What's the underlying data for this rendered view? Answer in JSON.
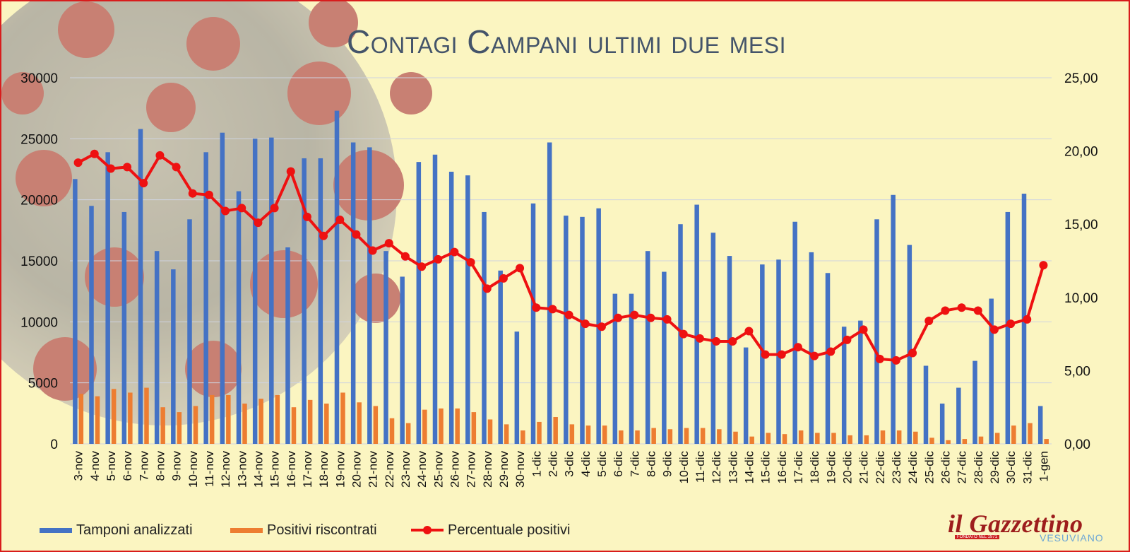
{
  "title": "Contagi Campani ultimi due mesi",
  "legend": {
    "tamponi": "Tamponi analizzati",
    "positivi": "Positivi riscontrati",
    "percentuale": "Percentuale positivi"
  },
  "logo": {
    "name": "il Gazzettino",
    "sub": "VESUVIANO",
    "small": "FONDATO NEL 1971"
  },
  "colors": {
    "tamponi": "#4472c4",
    "positivi": "#ed7d31",
    "percentuale": "#ee1111",
    "title": "#44546a",
    "border": "#d81c1c",
    "background": "#fbf5c1"
  },
  "chart_data": {
    "type": "bar",
    "title": "Contagi Campani ultimi due mesi",
    "categories": [
      "3-nov",
      "4-nov",
      "5-nov",
      "6-nov",
      "7-nov",
      "8-nov",
      "9-nov",
      "10-nov",
      "11-nov",
      "12-nov",
      "13-nov",
      "14-nov",
      "15-nov",
      "16-nov",
      "17-nov",
      "18-nov",
      "19-nov",
      "20-nov",
      "21-nov",
      "22-nov",
      "23-nov",
      "24-nov",
      "25-nov",
      "26-nov",
      "27-nov",
      "28-nov",
      "29-nov",
      "30-nov",
      "1-dic",
      "2-dic",
      "3-dic",
      "4-dic",
      "5-dic",
      "6-dic",
      "7-dic",
      "8-dic",
      "9-dic",
      "10-dic",
      "11-dic",
      "12-dic",
      "13-dic",
      "14-dic",
      "15-dic",
      "16-dic",
      "17-dic",
      "18-dic",
      "19-dic",
      "20-dic",
      "21-dic",
      "22-dic",
      "23-dic",
      "24-dic",
      "25-dic",
      "26-dic",
      "27-dic",
      "28-dic",
      "29-dic",
      "30-dic",
      "31-dic",
      "1-gen"
    ],
    "series": [
      {
        "name": "Tamponi analizzati",
        "type": "bar",
        "axis": "left",
        "values": [
          21700,
          19500,
          23900,
          19000,
          25800,
          15800,
          14300,
          18400,
          23900,
          25500,
          20700,
          25000,
          25100,
          16100,
          23400,
          23400,
          27300,
          24700,
          24300,
          15800,
          13700,
          23100,
          23700,
          22300,
          22000,
          19000,
          14200,
          9200,
          19700,
          24700,
          18700,
          18600,
          19300,
          12300,
          12300,
          15800,
          14100,
          18000,
          19600,
          17300,
          15400,
          7900,
          14700,
          15100,
          18200,
          15700,
          14000,
          9600,
          10100,
          18400,
          20400,
          16300,
          6400,
          3300,
          4600,
          6800,
          11900,
          19000,
          20500,
          3100
        ]
      },
      {
        "name": "Positivi riscontrati",
        "type": "bar",
        "axis": "left",
        "values": [
          4100,
          3900,
          4500,
          4200,
          4600,
          3000,
          2600,
          3100,
          4000,
          4000,
          3300,
          3700,
          4000,
          3000,
          3600,
          3300,
          4200,
          3400,
          3100,
          2100,
          1700,
          2800,
          2900,
          2900,
          2600,
          2000,
          1600,
          1100,
          1800,
          2200,
          1600,
          1500,
          1500,
          1100,
          1100,
          1300,
          1200,
          1300,
          1300,
          1200,
          1000,
          600,
          900,
          800,
          1100,
          900,
          900,
          700,
          700,
          1100,
          1100,
          1000,
          500,
          300,
          400,
          600,
          900,
          1500,
          1700,
          400
        ]
      },
      {
        "name": "Percentuale positivi",
        "type": "line",
        "axis": "right",
        "values": [
          19.2,
          19.8,
          18.8,
          18.9,
          17.8,
          19.7,
          18.9,
          17.1,
          17.0,
          15.9,
          16.1,
          15.1,
          16.1,
          18.6,
          15.5,
          14.2,
          15.3,
          14.3,
          13.2,
          13.7,
          12.8,
          12.1,
          12.6,
          13.1,
          12.4,
          10.6,
          11.3,
          12.0,
          9.3,
          9.2,
          8.8,
          8.2,
          8.0,
          8.6,
          8.8,
          8.6,
          8.5,
          7.5,
          7.2,
          7.0,
          7.0,
          7.7,
          6.1,
          6.1,
          6.6,
          6.0,
          6.3,
          7.1,
          7.8,
          5.8,
          5.7,
          6.2,
          8.4,
          9.1,
          9.3,
          9.1,
          7.8,
          8.2,
          8.5,
          12.2
        ]
      }
    ],
    "y_left": {
      "min": 0,
      "max": 30000,
      "ticks": [
        "0",
        "5000",
        "10000",
        "15000",
        "20000",
        "25000",
        "30000"
      ]
    },
    "y_right": {
      "min": 0,
      "max": 25,
      "ticks": [
        "0,00",
        "5,00",
        "10,00",
        "15,00",
        "20,00",
        "25,00"
      ]
    },
    "grid": true,
    "legend_position": "bottom"
  }
}
